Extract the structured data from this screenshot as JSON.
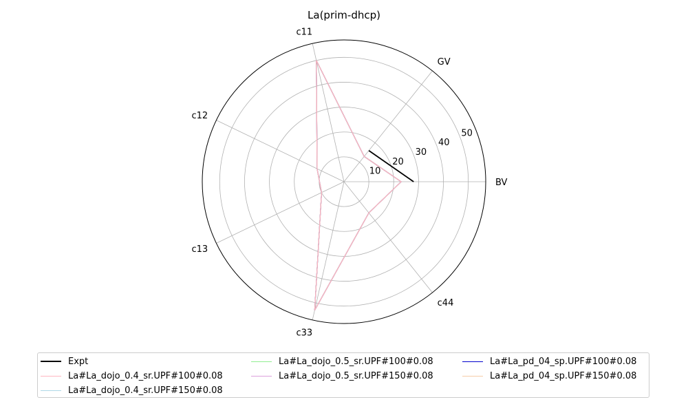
{
  "chart_data": {
    "type": "radar",
    "title": "La(prim-dhcp)",
    "axes": [
      "BV",
      "GV",
      "c11",
      "c12",
      "c13",
      "c33",
      "c44"
    ],
    "radial_ticks": [
      10,
      20,
      30,
      40,
      50
    ],
    "rlim": [
      0,
      57
    ],
    "grid": true,
    "legend_position": "bottom",
    "legend_columns": 3,
    "series": [
      {
        "name": "Expt",
        "color": "#000000",
        "values": [
          28,
          16,
          null,
          null,
          null,
          null,
          null
        ]
      },
      {
        "name": "La#La_dojo_0.4_sr.UPF#100#0.08",
        "color": "#ffb6c1",
        "values": [
          23,
          13,
          50,
          12,
          10,
          53,
          16
        ]
      },
      {
        "name": "La#La_dojo_0.4_sr.UPF#150#0.08",
        "color": "#add8e6",
        "values": [
          23,
          13,
          50,
          12,
          10,
          53,
          16
        ]
      },
      {
        "name": "La#La_dojo_0.5_sr.UPF#100#0.08",
        "color": "#90ee90",
        "values": [
          23,
          13,
          50,
          12,
          10,
          53,
          16
        ]
      },
      {
        "name": "La#La_dojo_0.5_sr.UPF#150#0.08",
        "color": "#dda0dd",
        "values": [
          23,
          13,
          50,
          12,
          10,
          53,
          16
        ]
      },
      {
        "name": "La#La_pd_04_sp.UPF#100#0.08",
        "color": "#0000cd",
        "values": [
          23,
          13,
          50,
          12,
          10,
          53,
          16
        ]
      },
      {
        "name": "La#La_pd_04_sp.UPF#150#0.08",
        "color": "#f5cba7",
        "values": [
          23,
          13,
          50,
          12,
          10,
          53,
          16
        ]
      }
    ]
  }
}
